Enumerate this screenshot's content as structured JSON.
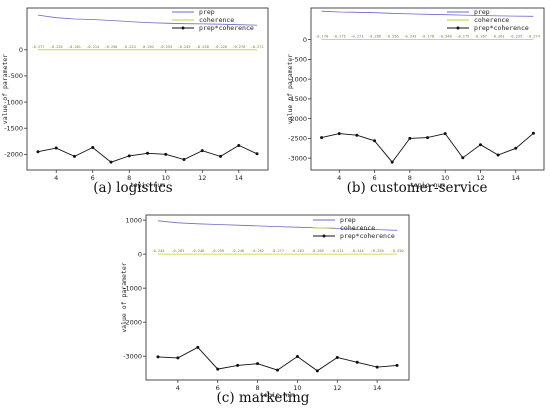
{
  "figure": {
    "captions": [
      "(a)  logistics",
      "(b)  customer-service",
      "(c)  marketing"
    ]
  },
  "chart_data": [
    {
      "type": "line",
      "xlabel": "topic-num",
      "ylabel": "value of parameter",
      "xticks": [
        4,
        6,
        8,
        10,
        12,
        14
      ],
      "yticks": [
        0,
        -500,
        -1000,
        -1500,
        -2000
      ],
      "xlim": [
        2.4,
        15.6
      ],
      "ylim": [
        -2300,
        800
      ],
      "legend": "top-right",
      "x": [
        3,
        4,
        5,
        6,
        7,
        8,
        9,
        10,
        11,
        12,
        13,
        14,
        15
      ],
      "series": [
        {
          "name": "prep",
          "color": "#6a6acc",
          "values": [
            665,
            615,
            590,
            580,
            560,
            540,
            520,
            510,
            500,
            495,
            490,
            480,
            470
          ]
        },
        {
          "name": "coherence",
          "color": "#c8c83a",
          "values": [
            -0.277,
            -0.235,
            -0.261,
            -0.214,
            -0.258,
            -0.224,
            -0.262,
            -0.253,
            -0.245,
            -0.23,
            -0.226,
            -0.276,
            -0.271
          ],
          "labels": [
            "-0.277",
            "-0.235",
            "-0.261",
            "-0.214",
            "-0.258",
            "-0.224",
            "-0.262",
            "-0.253",
            "-0.245",
            "-0.230",
            "-0.226",
            "-0.276",
            "-0.271"
          ]
        },
        {
          "name": "prep*coherence",
          "color": "#111111",
          "values": [
            -1950,
            -1880,
            -2040,
            -1870,
            -2150,
            -2030,
            -1980,
            -2000,
            -2100,
            -1930,
            -2040,
            -1830,
            -1990
          ]
        }
      ]
    },
    {
      "type": "line",
      "xlabel": "topic-num",
      "ylabel": "value of parameter",
      "xticks": [
        4,
        6,
        8,
        10,
        12,
        14
      ],
      "yticks": [
        0,
        -500,
        -1000,
        -1500,
        -2000,
        -2500,
        -3000
      ],
      "xlim": [
        2.4,
        15.6
      ],
      "ylim": [
        -3300,
        800
      ],
      "legend": "top-right",
      "x": [
        3,
        4,
        5,
        6,
        7,
        8,
        9,
        10,
        11,
        12,
        13,
        14,
        15
      ],
      "series": [
        {
          "name": "prep",
          "color": "#6a6acc",
          "values": [
            720,
            700,
            690,
            680,
            665,
            650,
            640,
            630,
            620,
            610,
            600,
            595,
            590
          ]
        },
        {
          "name": "coherence",
          "color": "#c8c83a",
          "values": [
            -0.178,
            -0.279,
            -0.273,
            -0.266,
            -0.256,
            -0.243,
            -0.178,
            -0.248,
            -0.275,
            -0.267,
            -0.261,
            -0.235,
            -0.274
          ],
          "labels": [
            "-0.178",
            "-0.279",
            "-0.273",
            "-0.266",
            "-0.256",
            "-0.243",
            "-0.178",
            "-0.248",
            "-0.275",
            "-0.267",
            "-0.261",
            "-0.235",
            "-0.274"
          ]
        },
        {
          "name": "prep*coherence",
          "color": "#111111",
          "values": [
            -2480,
            -2380,
            -2420,
            -2560,
            -3100,
            -2500,
            -2480,
            -2380,
            -2990,
            -2660,
            -2920,
            -2750,
            -2370
          ]
        }
      ]
    },
    {
      "type": "line",
      "xlabel": "topic-num",
      "ylabel": "value of parameter",
      "xticks": [
        4,
        6,
        8,
        10,
        12,
        14
      ],
      "yticks": [
        1000,
        0,
        -1000,
        -2000,
        -3000
      ],
      "xlim": [
        2.4,
        15.6
      ],
      "ylim": [
        -3700,
        1150
      ],
      "legend": "top-right",
      "x": [
        3,
        4,
        5,
        6,
        7,
        8,
        9,
        10,
        11,
        12,
        13,
        14,
        15
      ],
      "series": [
        {
          "name": "prep",
          "color": "#6a6acc",
          "values": [
            980,
            920,
            890,
            870,
            850,
            830,
            810,
            790,
            770,
            750,
            730,
            720,
            700
          ]
        },
        {
          "name": "coherence",
          "color": "#c8c83a",
          "values": [
            -0.245,
            -0.265,
            -0.246,
            -0.259,
            -0.246,
            -0.262,
            -0.277,
            -0.263,
            -0.265,
            -0.211,
            -0.244,
            -0.258,
            -0.25
          ],
          "labels": [
            "-0.245",
            "-0.265",
            "-0.246",
            "-0.259",
            "-0.246",
            "-0.262",
            "-0.277",
            "-0.263",
            "-0.265",
            "-0.211",
            "-0.244",
            "-0.258",
            "-0.250"
          ]
        },
        {
          "name": "prep*coherence",
          "color": "#111111",
          "values": [
            -3020,
            -3050,
            -2740,
            -3380,
            -3270,
            -3220,
            -3410,
            -3010,
            -3430,
            -3040,
            -3180,
            -3320,
            -3270
          ]
        }
      ]
    }
  ]
}
